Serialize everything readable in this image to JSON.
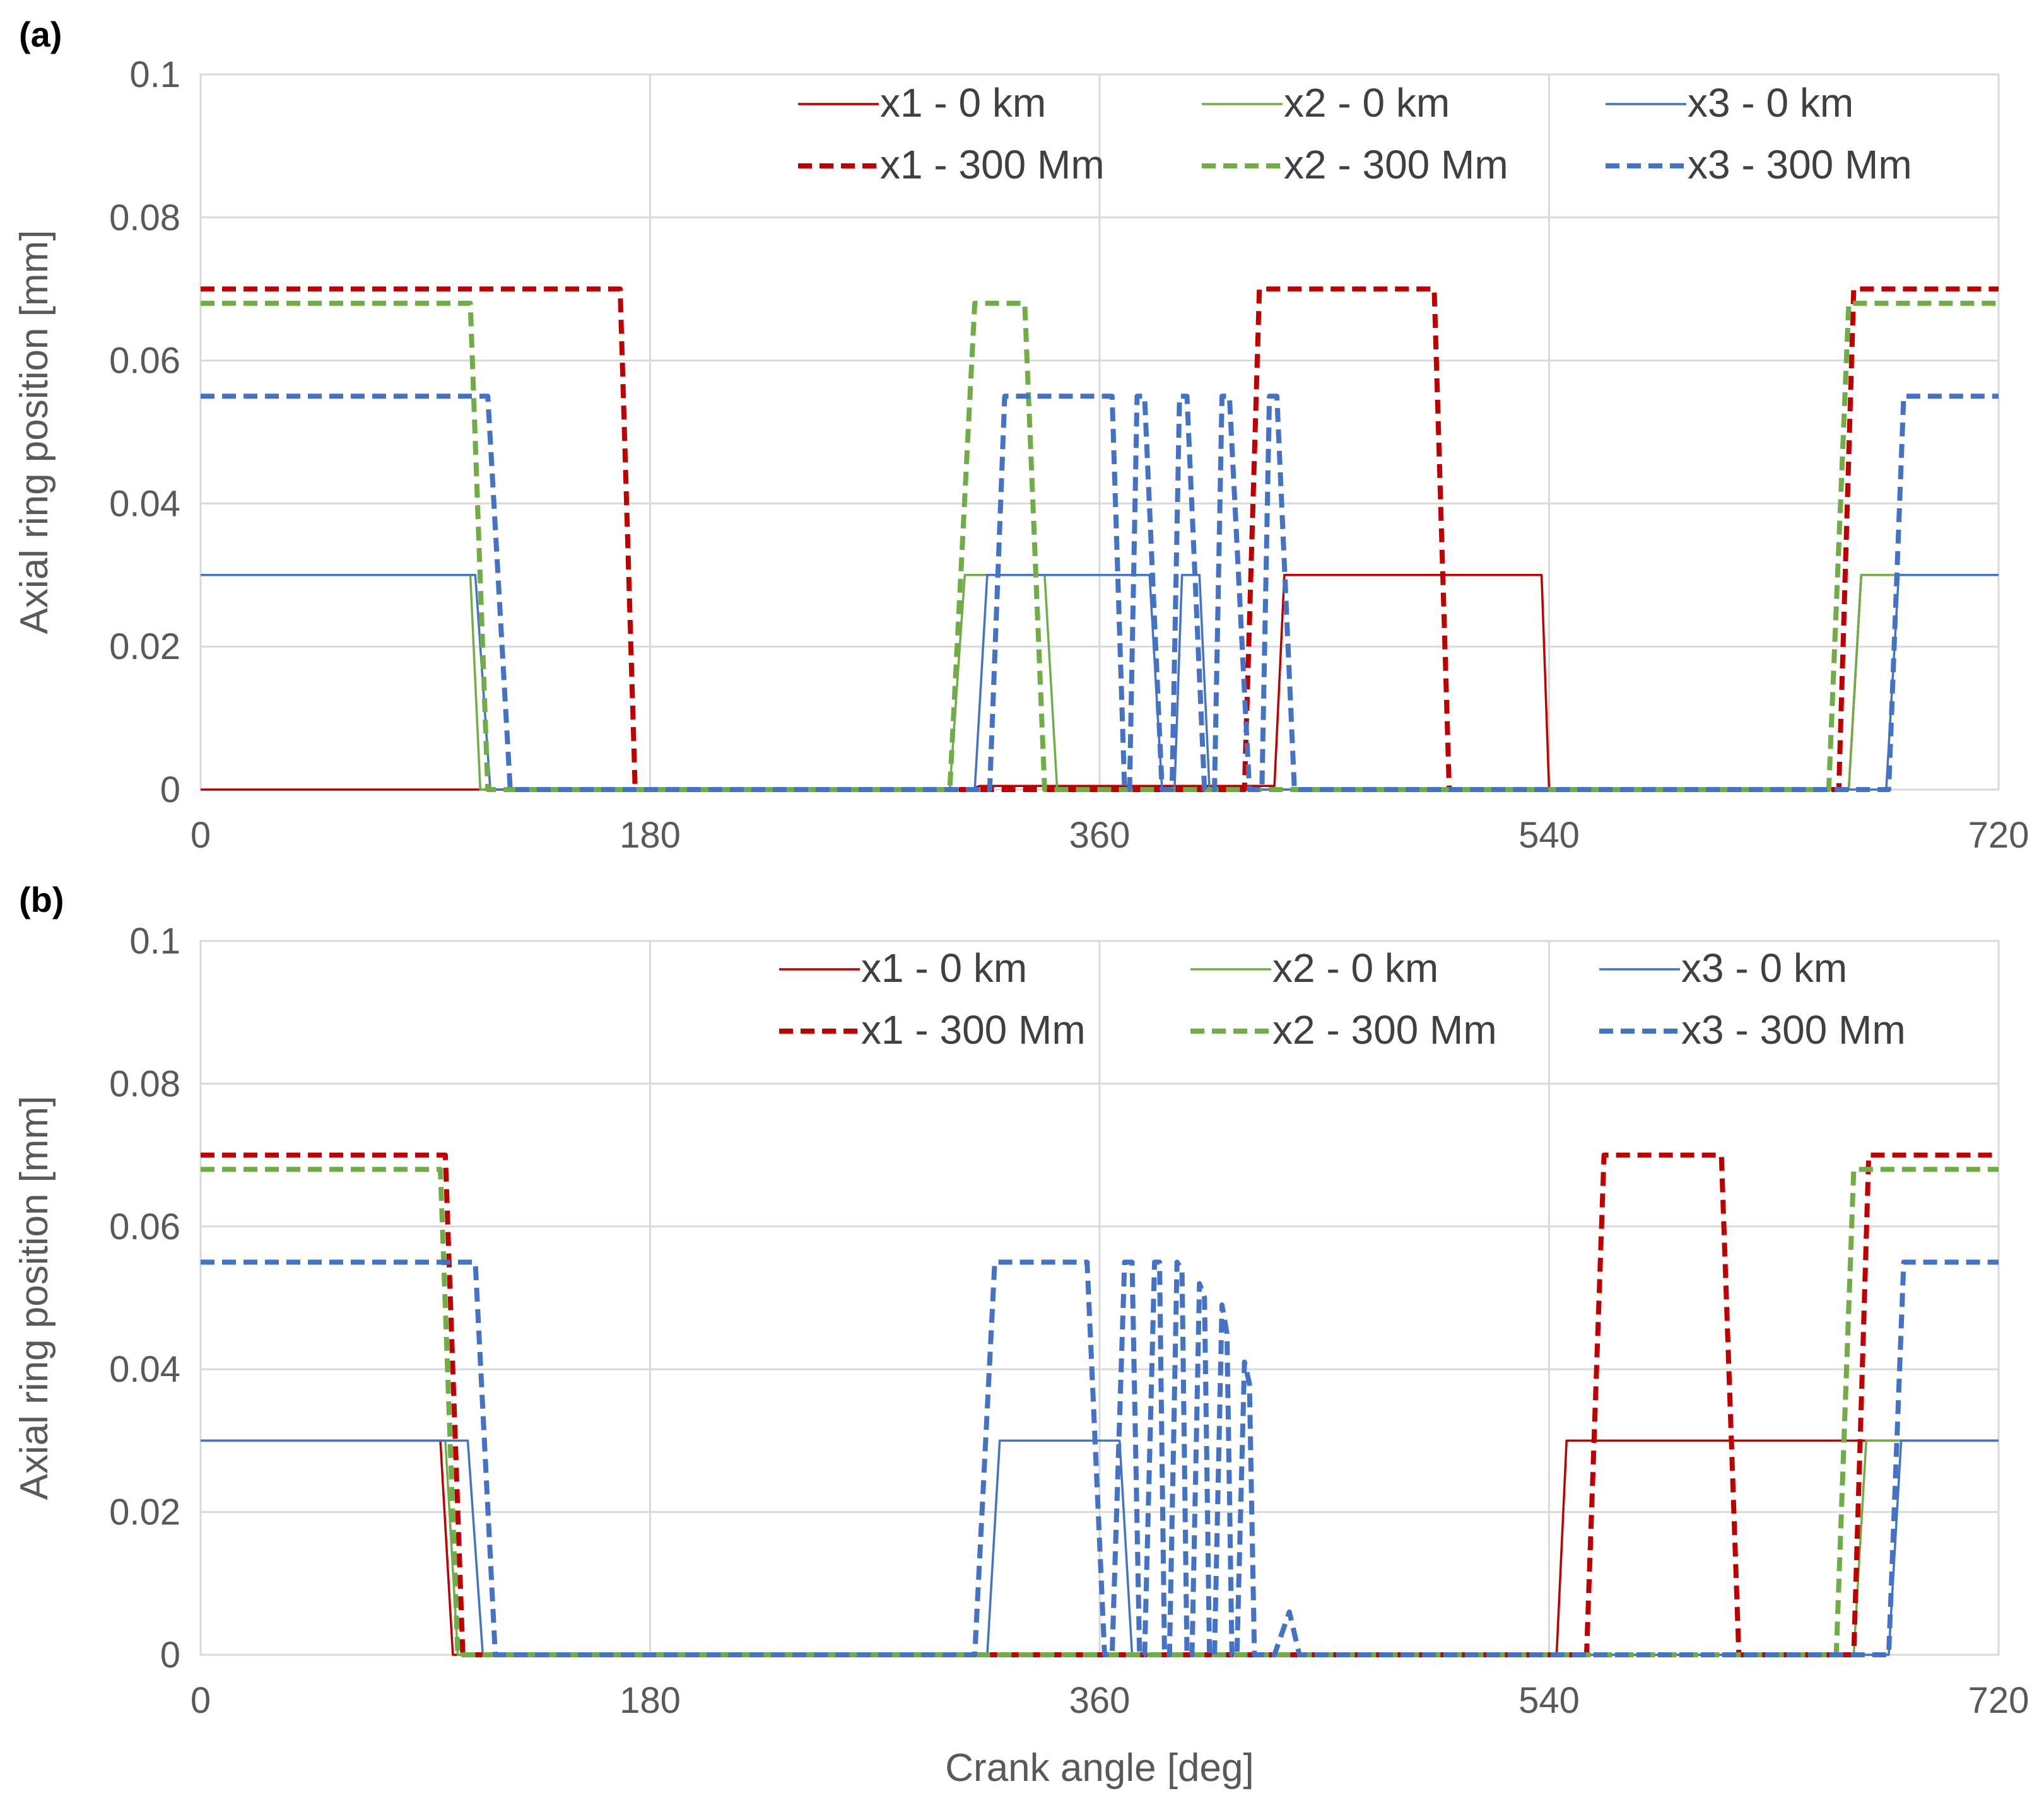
{
  "colors": {
    "x1": "#c00000",
    "x2": "#70ad47",
    "x3": "#4472c4",
    "grid": "#d9d9d9",
    "text": "#595959"
  },
  "chart_data": [
    {
      "panel": "(a)",
      "type": "line",
      "title": "",
      "xlabel": "",
      "ylabel": "Axial ring position [mm]",
      "xlim": [
        0,
        720
      ],
      "ylim": [
        0,
        0.1
      ],
      "xticks": [
        "0",
        "180",
        "360",
        "540",
        "720"
      ],
      "yticks": [
        "0",
        "0.02",
        "0.04",
        "0.06",
        "0.08",
        "0.1"
      ],
      "legend": "top-right",
      "series": [
        {
          "name": "x1 - 0 km",
          "color": "#c00000",
          "style": "solid",
          "x": [
            0,
            308,
            312,
            430,
            434,
            537,
            540,
            660,
            665,
            720
          ],
          "y": [
            0,
            0,
            0.0005,
            0.0005,
            0.03,
            0.03,
            0,
            0,
            0.03,
            0.03
          ]
        },
        {
          "name": "x2 - 0 km",
          "color": "#70ad47",
          "style": "solid",
          "x": [
            0,
            103,
            108,
            112,
            300,
            306,
            338,
            343,
            660,
            665,
            720
          ],
          "y": [
            0.03,
            0.03,
            0.03,
            0,
            0,
            0.03,
            0.03,
            0,
            0,
            0.03,
            0.03
          ]
        },
        {
          "name": "x3 - 0 km",
          "color": "#4472c4",
          "style": "solid",
          "x": [
            0,
            110,
            116,
            310,
            315,
            380,
            385,
            390,
            393,
            400,
            404,
            418,
            423,
            675,
            680,
            720
          ],
          "y": [
            0.03,
            0.03,
            0,
            0,
            0.03,
            0.03,
            0,
            0,
            0.03,
            0.03,
            0,
            0,
            0,
            0,
            0.03,
            0.03
          ]
        },
        {
          "name": "x1 - 300 Mm",
          "color": "#c00000",
          "style": "dashed",
          "x": [
            0,
            168,
            174,
            418,
            424,
            494,
            500,
            656,
            662,
            720
          ],
          "y": [
            0.07,
            0.07,
            0,
            0,
            0.07,
            0.07,
            0,
            0,
            0.07,
            0.07
          ]
        },
        {
          "name": "x2 - 300 Mm",
          "color": "#70ad47",
          "style": "dashed",
          "x": [
            0,
            108,
            115,
            300,
            310,
            330,
            338,
            652,
            660,
            720
          ],
          "y": [
            0.068,
            0.068,
            0,
            0,
            0.068,
            0.068,
            0,
            0,
            0.068,
            0.068
          ]
        },
        {
          "name": "x3 - 300 Mm",
          "color": "#4472c4",
          "style": "dashed",
          "x": [
            0,
            115,
            124,
            316,
            322,
            365,
            370,
            372,
            375,
            378,
            385,
            389,
            392,
            395,
            402,
            406,
            409,
            412,
            420,
            425,
            428,
            431,
            438,
            442,
            676,
            682,
            720
          ],
          "y": [
            0.055,
            0.055,
            0,
            0,
            0.055,
            0.055,
            0,
            0,
            0.055,
            0.055,
            0,
            0,
            0.055,
            0.055,
            0,
            0,
            0.055,
            0.055,
            0,
            0,
            0.055,
            0.055,
            0,
            0,
            0,
            0.055,
            0.055
          ]
        }
      ]
    },
    {
      "panel": "(b)",
      "type": "line",
      "title": "",
      "xlabel": "Crank angle [deg]",
      "ylabel": "Axial ring position [mm]",
      "xlim": [
        0,
        720
      ],
      "ylim": [
        0,
        0.1
      ],
      "xticks": [
        "0",
        "180",
        "360",
        "540",
        "720"
      ],
      "yticks": [
        "0",
        "0.02",
        "0.04",
        "0.06",
        "0.08",
        "0.1"
      ],
      "legend": "top-right",
      "series": [
        {
          "name": "x1 - 0 km",
          "color": "#c00000",
          "style": "solid",
          "x": [
            0,
            96,
            101,
            543,
            547,
            660,
            664,
            720
          ],
          "y": [
            0.03,
            0.03,
            0,
            0,
            0.03,
            0.03,
            0.03,
            0.03
          ]
        },
        {
          "name": "x2 - 0 km",
          "color": "#70ad47",
          "style": "solid",
          "x": [
            0,
            98,
            103,
            662,
            667,
            720
          ],
          "y": [
            0.03,
            0.03,
            0,
            0,
            0.03,
            0.03
          ]
        },
        {
          "name": "x3 - 0 km",
          "color": "#4472c4",
          "style": "solid",
          "x": [
            0,
            107,
            113,
            315,
            320,
            368,
            373,
            676,
            681,
            720
          ],
          "y": [
            0.03,
            0.03,
            0,
            0,
            0.03,
            0.03,
            0,
            0,
            0.03,
            0.03
          ]
        },
        {
          "name": "x1 - 300 Mm",
          "color": "#c00000",
          "style": "dashed",
          "x": [
            0,
            98,
            105,
            555,
            562,
            609,
            616,
            662,
            668,
            720
          ],
          "y": [
            0.07,
            0.07,
            0,
            0,
            0.07,
            0.07,
            0,
            0,
            0.07,
            0.07
          ]
        },
        {
          "name": "x2 - 300 Mm",
          "color": "#70ad47",
          "style": "dashed",
          "x": [
            0,
            96,
            103,
            655,
            662,
            720
          ],
          "y": [
            0.068,
            0.068,
            0,
            0,
            0.068,
            0.068
          ]
        },
        {
          "name": "x3 - 300 Mm",
          "color": "#4472c4",
          "style": "dashed",
          "x": [
            0,
            110,
            118,
            310,
            318,
            355,
            362,
            365,
            370,
            373,
            376,
            378,
            382,
            384,
            386,
            388,
            391,
            393,
            395,
            397,
            400,
            402,
            404,
            406,
            409,
            411,
            413,
            415,
            418,
            420,
            422,
            424,
            430,
            436,
            440,
            676,
            682,
            720
          ],
          "y": [
            0.055,
            0.055,
            0,
            0,
            0.055,
            0.055,
            0,
            0,
            0.055,
            0.055,
            0,
            0,
            0.055,
            0.055,
            0,
            0,
            0.055,
            0.054,
            0,
            0,
            0.052,
            0.05,
            0,
            0,
            0.049,
            0.045,
            0,
            0,
            0.041,
            0.038,
            0,
            0,
            0,
            0.006,
            0,
            0,
            0.055,
            0.055
          ]
        }
      ]
    }
  ]
}
